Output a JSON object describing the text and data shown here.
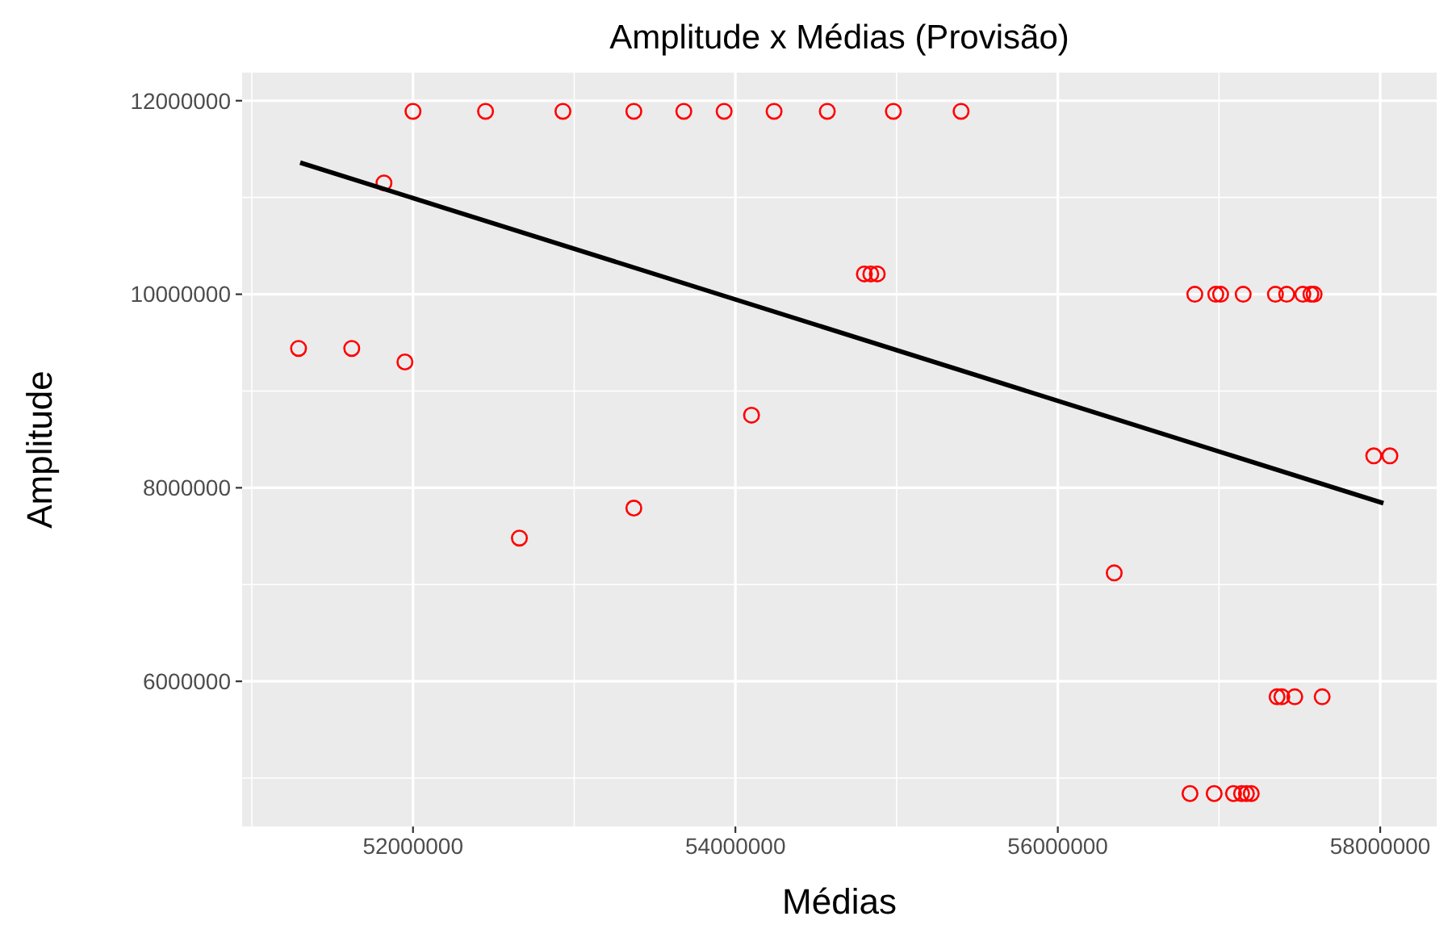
{
  "chart_data": {
    "type": "scatter",
    "title": "Amplitude x Médias (Provisão)",
    "xlabel": "Médias",
    "ylabel": "Amplitude",
    "xlim": [
      50940000,
      58350000
    ],
    "ylim": [
      4500000,
      12290000
    ],
    "xticks": [
      52000000,
      54000000,
      56000000,
      58000000
    ],
    "yticks": [
      6000000,
      8000000,
      10000000,
      12000000
    ],
    "grid": true,
    "series": [
      {
        "color": "#ff0000",
        "marker": "circle",
        "x": [
          52000000,
          52450000,
          52930000,
          53370000,
          53680000,
          53930000,
          54240000,
          54570000,
          54980000,
          55400000,
          51820000,
          51290000,
          51620000,
          51950000,
          54100000,
          54800000,
          54840000,
          54880000,
          52660000,
          53370000,
          56850000,
          56980000,
          57010000,
          57150000,
          57350000,
          57420000,
          57520000,
          57570000,
          57590000,
          57960000,
          58060000,
          56350000,
          57360000,
          57390000,
          57470000,
          57640000,
          56820000,
          56970000,
          57090000,
          57140000,
          57170000,
          57200000
        ],
        "values": [
          11890000,
          11890000,
          11890000,
          11890000,
          11890000,
          11890000,
          11890000,
          11890000,
          11890000,
          11890000,
          11150000,
          9440000,
          9440000,
          9300000,
          8750000,
          10210000,
          10210000,
          10210000,
          7480000,
          7790000,
          10000000,
          10000000,
          10000000,
          10000000,
          10000000,
          10000000,
          10000000,
          10000000,
          10000000,
          8330000,
          8330000,
          7120000,
          5840000,
          5840000,
          5840000,
          5840000,
          4840000,
          4840000,
          4840000,
          4840000,
          4840000,
          4840000
        ]
      },
      {
        "type": "line",
        "color": "#000000",
        "x": [
          51300000,
          58020000
        ],
        "values": [
          11360000,
          7840000
        ]
      }
    ]
  }
}
